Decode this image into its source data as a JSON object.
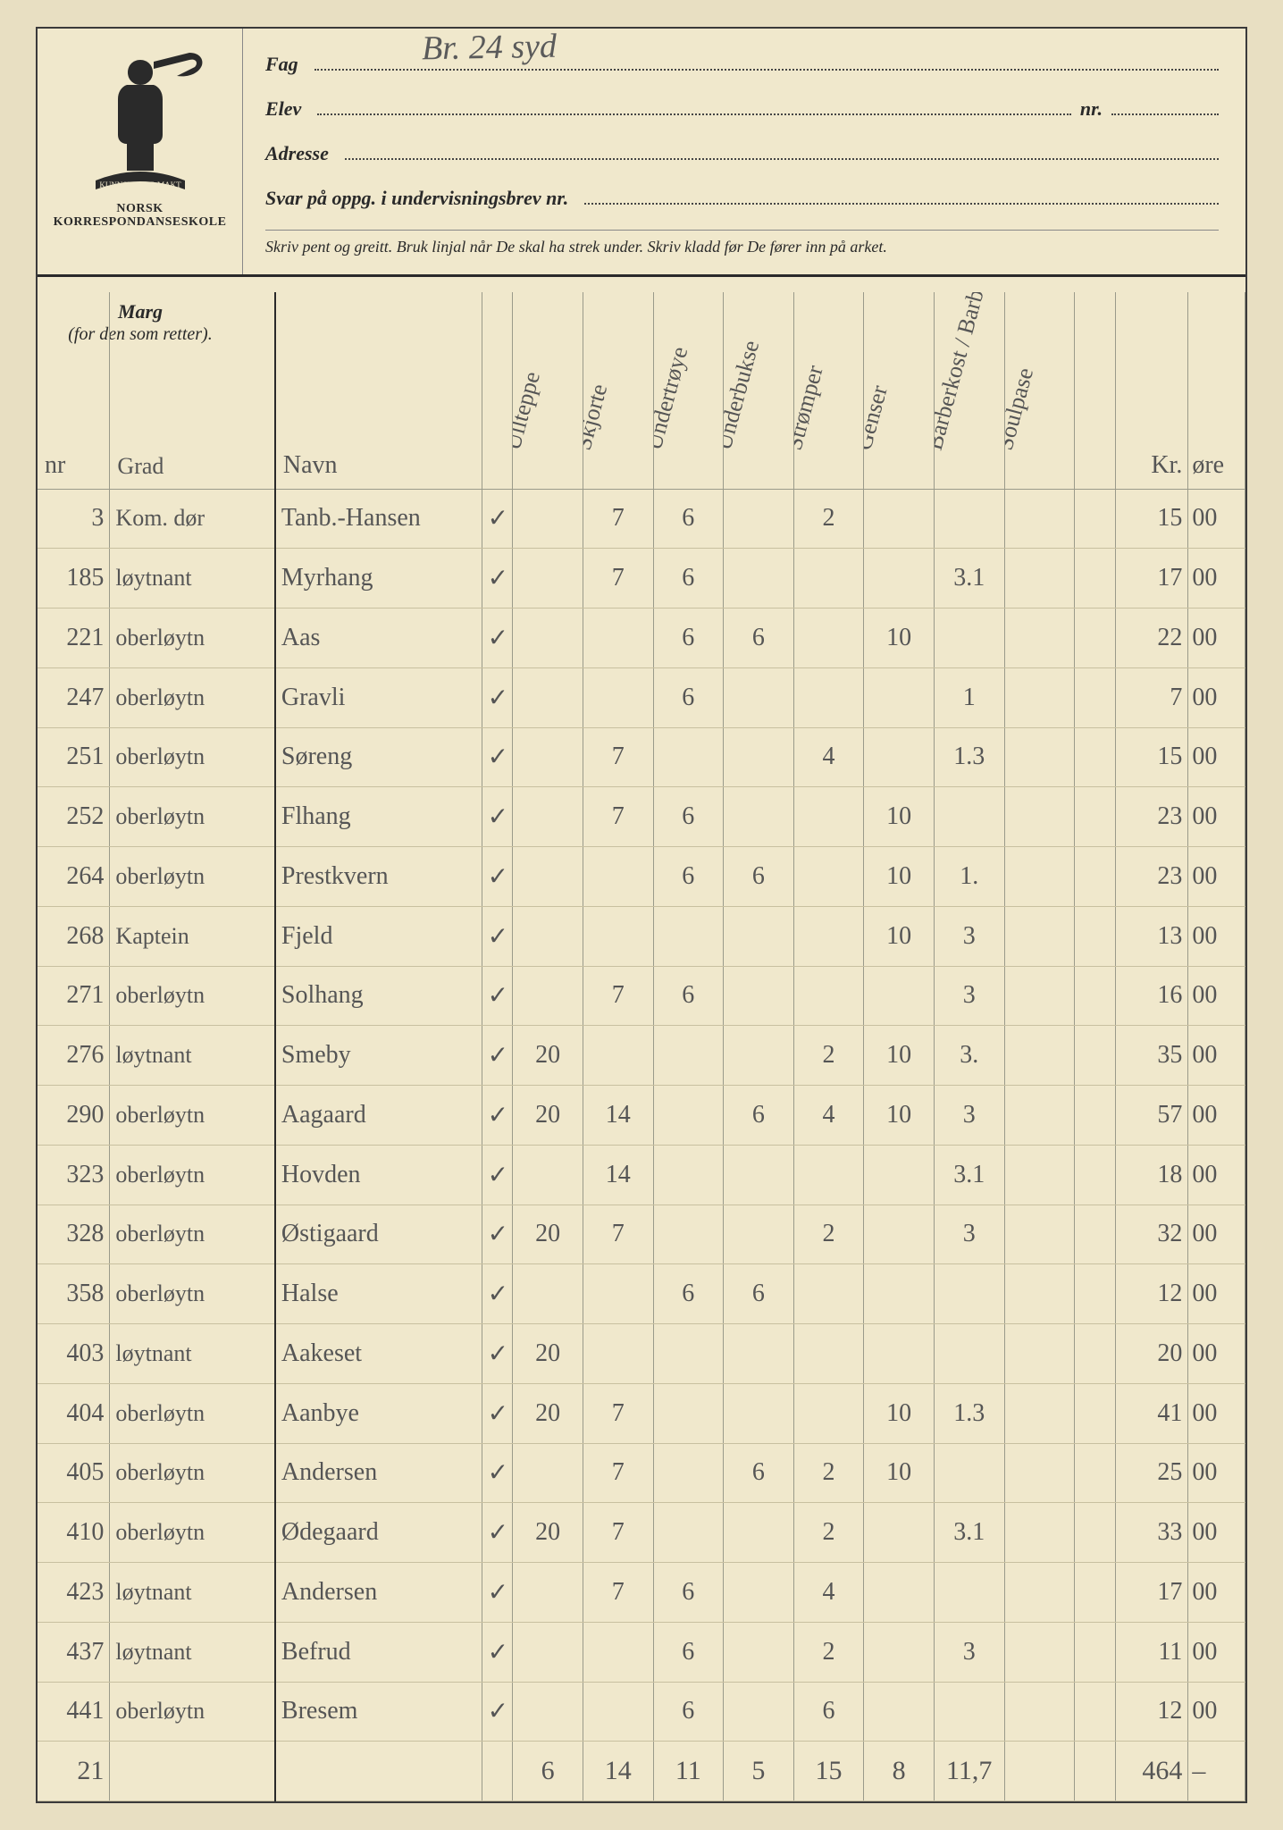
{
  "colors": {
    "paper": "#f0e8cc",
    "ink_print": "#2a2a2a",
    "ink_pencil": "#555555",
    "rule_light": "#c8c0a0",
    "rule_col": "#9a9a8a"
  },
  "header": {
    "org_line1": "NORSK",
    "org_line2": "KORRESPONDANSESKOLE",
    "motto": "KUNNSKAP ER MAKT",
    "fields": {
      "fag_label": "Fag",
      "fag_value": "Br. 24 syd",
      "elev_label": "Elev",
      "nr_label": "nr.",
      "adresse_label": "Adresse",
      "svar_label": "Svar på oppg. i undervisningsbrev nr."
    },
    "instructions": "Skriv pent og greitt.   Bruk linjal når De skal ha strek under.   Skriv kladd før De fører inn på arket.",
    "marg_title": "Marg",
    "marg_sub": "(for den som retter)."
  },
  "columns": {
    "nr": "nr",
    "grad": "Grad",
    "navn": "Navn",
    "c1": "Ullteppe",
    "c2": "Skjorte",
    "c3": "Undertrøye",
    "c4": "Underbukse",
    "c5": "Strømper",
    "c6": "Genser",
    "c7": "Barberkost / Barberhøvel",
    "c8": "Soulpase",
    "kr": "Kr.",
    "ore": "øre"
  },
  "rows": [
    {
      "nr": "3",
      "grad": "Kom. dør",
      "navn": "Tanb.-Hansen",
      "chk": "✓",
      "c1": "",
      "c2": "7",
      "c3": "6",
      "c4": "",
      "c5": "2",
      "c6": "",
      "c7": "",
      "c8": "",
      "kr": "15",
      "ore": "00"
    },
    {
      "nr": "185",
      "grad": "løytnant",
      "navn": "Myrhang",
      "chk": "✓",
      "c1": "",
      "c2": "7",
      "c3": "6",
      "c4": "",
      "c5": "",
      "c6": "",
      "c7": "3.1",
      "c8": "",
      "kr": "17",
      "ore": "00"
    },
    {
      "nr": "221",
      "grad": "oberløytn",
      "navn": "Aas",
      "chk": "✓",
      "c1": "",
      "c2": "",
      "c3": "6",
      "c4": "6",
      "c5": "",
      "c6": "10",
      "c7": "",
      "c8": "",
      "kr": "22",
      "ore": "00"
    },
    {
      "nr": "247",
      "grad": "oberløytn",
      "navn": "Gravli",
      "chk": "✓",
      "c1": "",
      "c2": "",
      "c3": "6",
      "c4": "",
      "c5": "",
      "c6": "",
      "c7": "1",
      "c8": "",
      "kr": "7",
      "ore": "00"
    },
    {
      "nr": "251",
      "grad": "oberløytn",
      "navn": "Søreng",
      "chk": "✓",
      "c1": "",
      "c2": "7",
      "c3": "",
      "c4": "",
      "c5": "4",
      "c6": "",
      "c7": "1.3",
      "c8": "",
      "kr": "15",
      "ore": "00"
    },
    {
      "nr": "252",
      "grad": "oberløytn",
      "navn": "Flhang",
      "chk": "✓",
      "c1": "",
      "c2": "7",
      "c3": "6",
      "c4": "",
      "c5": "",
      "c6": "10",
      "c7": "",
      "c8": "",
      "kr": "23",
      "ore": "00"
    },
    {
      "nr": "264",
      "grad": "oberløytn",
      "navn": "Prestkvern",
      "chk": "✓",
      "c1": "",
      "c2": "",
      "c3": "6",
      "c4": "6",
      "c5": "",
      "c6": "10",
      "c7": "1.",
      "c8": "",
      "kr": "23",
      "ore": "00"
    },
    {
      "nr": "268",
      "grad": "Kaptein",
      "navn": "Fjeld",
      "chk": "✓",
      "c1": "",
      "c2": "",
      "c3": "",
      "c4": "",
      "c5": "",
      "c6": "10",
      "c7": "3",
      "c8": "",
      "kr": "13",
      "ore": "00"
    },
    {
      "nr": "271",
      "grad": "oberløytn",
      "navn": "Solhang",
      "chk": "✓",
      "c1": "",
      "c2": "7",
      "c3": "6",
      "c4": "",
      "c5": "",
      "c6": "",
      "c7": "3",
      "c8": "",
      "kr": "16",
      "ore": "00"
    },
    {
      "nr": "276",
      "grad": "løytnant",
      "navn": "Smeby",
      "chk": "✓",
      "c1": "20",
      "c2": "",
      "c3": "",
      "c4": "",
      "c5": "2",
      "c6": "10",
      "c7": "3.",
      "c8": "",
      "kr": "35",
      "ore": "00"
    },
    {
      "nr": "290",
      "grad": "oberløytn",
      "navn": "Aagaard",
      "chk": "✓",
      "c1": "20",
      "c2": "14",
      "c3": "",
      "c4": "6",
      "c5": "4",
      "c6": "10",
      "c7": "3",
      "c8": "",
      "kr": "57",
      "ore": "00"
    },
    {
      "nr": "323",
      "grad": "oberløytn",
      "navn": "Hovden",
      "chk": "✓",
      "c1": "",
      "c2": "14",
      "c3": "",
      "c4": "",
      "c5": "",
      "c6": "",
      "c7": "3.1",
      "c8": "",
      "kr": "18",
      "ore": "00"
    },
    {
      "nr": "328",
      "grad": "oberløytn",
      "navn": "Østigaard",
      "chk": "✓",
      "c1": "20",
      "c2": "7",
      "c3": "",
      "c4": "",
      "c5": "2",
      "c6": "",
      "c7": "3",
      "c8": "",
      "kr": "32",
      "ore": "00"
    },
    {
      "nr": "358",
      "grad": "oberløytn",
      "navn": "Halse",
      "chk": "✓",
      "c1": "",
      "c2": "",
      "c3": "6",
      "c4": "6",
      "c5": "",
      "c6": "",
      "c7": "",
      "c8": "",
      "kr": "12",
      "ore": "00"
    },
    {
      "nr": "403",
      "grad": "løytnant",
      "navn": "Aakeset",
      "chk": "✓",
      "c1": "20",
      "c2": "",
      "c3": "",
      "c4": "",
      "c5": "",
      "c6": "",
      "c7": "",
      "c8": "",
      "kr": "20",
      "ore": "00"
    },
    {
      "nr": "404",
      "grad": "oberløytn",
      "navn": "Aanbye",
      "chk": "✓",
      "c1": "20",
      "c2": "7",
      "c3": "",
      "c4": "",
      "c5": "",
      "c6": "10",
      "c7": "1.3",
      "c8": "",
      "kr": "41",
      "ore": "00"
    },
    {
      "nr": "405",
      "grad": "oberløytn",
      "navn": "Andersen",
      "chk": "✓",
      "c1": "",
      "c2": "7",
      "c3": "",
      "c4": "6",
      "c5": "2",
      "c6": "10",
      "c7": "",
      "c8": "",
      "kr": "25",
      "ore": "00"
    },
    {
      "nr": "410",
      "grad": "oberløytn",
      "navn": "Ødegaard",
      "chk": "✓",
      "c1": "20",
      "c2": "7",
      "c3": "",
      "c4": "",
      "c5": "2",
      "c6": "",
      "c7": "3.1",
      "c8": "",
      "kr": "33",
      "ore": "00"
    },
    {
      "nr": "423",
      "grad": "løytnant",
      "navn": "Andersen",
      "chk": "✓",
      "c1": "",
      "c2": "7",
      "c3": "6",
      "c4": "",
      "c5": "4",
      "c6": "",
      "c7": "",
      "c8": "",
      "kr": "17",
      "ore": "00"
    },
    {
      "nr": "437",
      "grad": "løytnant",
      "navn": "Befrud",
      "chk": "✓",
      "c1": "",
      "c2": "",
      "c3": "6",
      "c4": "",
      "c5": "2",
      "c6": "",
      "c7": "3",
      "c8": "",
      "kr": "11",
      "ore": "00"
    },
    {
      "nr": "441",
      "grad": "oberløytn",
      "navn": "Bresem",
      "chk": "✓",
      "c1": "",
      "c2": "",
      "c3": "6",
      "c4": "",
      "c5": "6",
      "c6": "",
      "c7": "",
      "c8": "",
      "kr": "12",
      "ore": "00"
    }
  ],
  "totals": {
    "nr": "21",
    "c1": "6",
    "c2": "14",
    "c3": "11",
    "c4": "5",
    "c5": "15",
    "c6": "8",
    "c7": "11,7",
    "kr": "464",
    "ore": "–"
  }
}
